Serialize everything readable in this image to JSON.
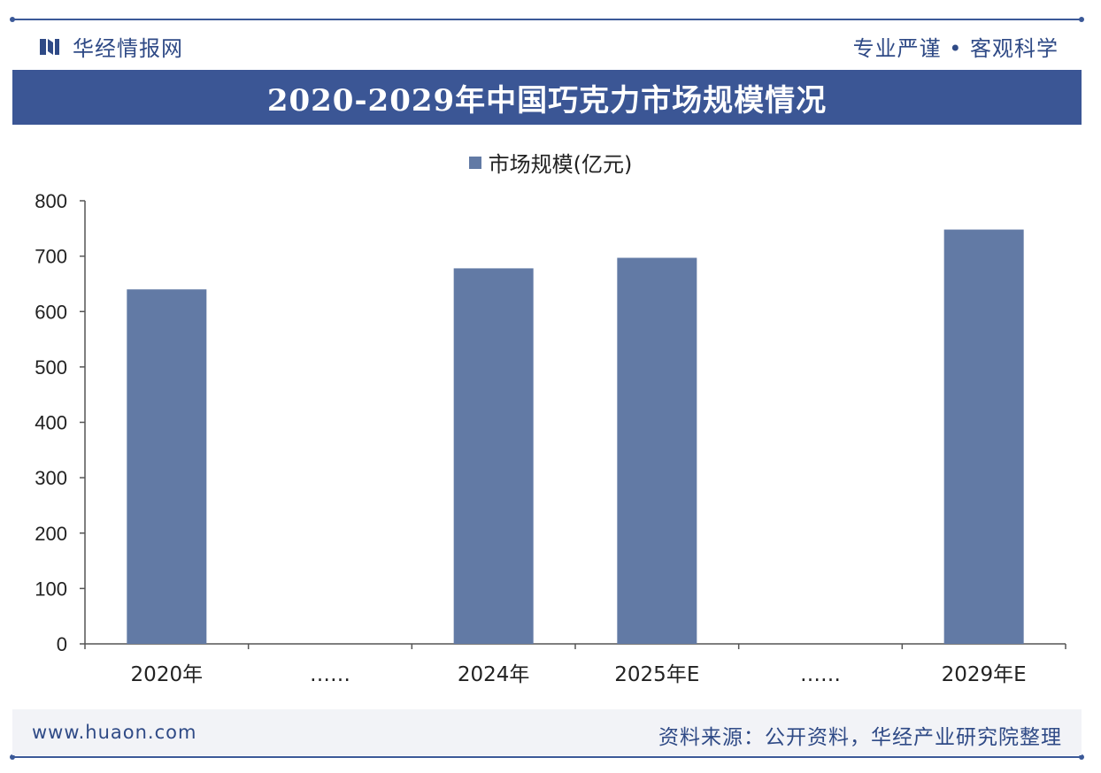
{
  "header": {
    "brand": "华经情报网",
    "slogan": "专业严谨 • 客观科学"
  },
  "footer": {
    "website": "www.huaon.com",
    "source": "资料来源：公开资料，华经产业研究院整理"
  },
  "colors": {
    "bar": "#627aa5",
    "accent": "#3b5695"
  },
  "chart_data": {
    "type": "bar",
    "title": "2020-2029年中国巧克力市场规模情况",
    "legend_position": "top-center",
    "categories": [
      "2020年",
      "……",
      "2024年",
      "2025年E",
      "……",
      "2029年E"
    ],
    "series": [
      {
        "name": "市场规模(亿元)",
        "values": [
          640,
          null,
          678,
          697,
          null,
          748
        ]
      }
    ],
    "ylim": [
      0,
      800
    ],
    "yticks": [
      0,
      100,
      200,
      300,
      400,
      500,
      600,
      700,
      800
    ],
    "grid": false
  }
}
